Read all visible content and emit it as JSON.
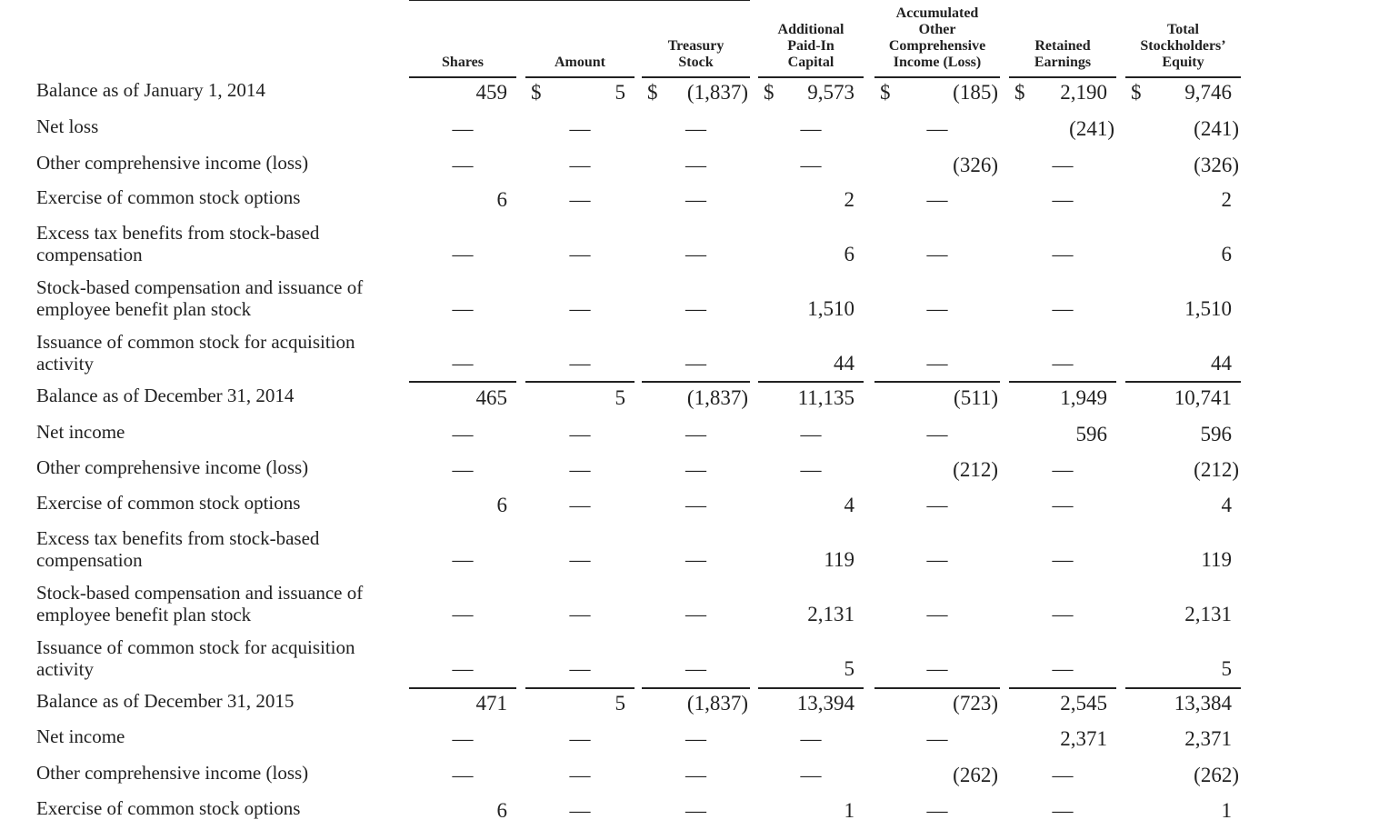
{
  "table": {
    "headers": [
      "Shares",
      "Amount",
      "Treasury\nStock",
      "Additional\nPaid-In\nCapital",
      "Accumulated\nOther\nComprehensive\nIncome (Loss)",
      "Retained\nEarnings",
      "Total\nStockholders’\nEquity"
    ],
    "rows": [
      {
        "label": "Balance as of January 1, 2014",
        "cells": [
          "459",
          {
            "currency": "$",
            "value": "5"
          },
          {
            "currency": "$",
            "value": "(1,837)"
          },
          {
            "currency": "$",
            "value": "9,573"
          },
          {
            "currency": "$",
            "value": "(185)"
          },
          {
            "currency": "$",
            "value": "2,190"
          },
          {
            "currency": "$",
            "value": "9,746"
          }
        ]
      },
      {
        "label": "Net loss",
        "cells": [
          "—",
          "—",
          "—",
          "—",
          "—",
          "(241)",
          "(241)"
        ]
      },
      {
        "label": "Other comprehensive income (loss)",
        "cells": [
          "—",
          "—",
          "—",
          "—",
          "(326)",
          "—",
          "(326)"
        ]
      },
      {
        "label": "Exercise of common stock options",
        "cells": [
          "6",
          "—",
          "—",
          "2",
          "—",
          "—",
          "2"
        ]
      },
      {
        "label": "Excess tax benefits from stock-based\ncompensation",
        "cells": [
          "—",
          "—",
          "—",
          "6",
          "—",
          "—",
          "6"
        ]
      },
      {
        "label": "Stock-based compensation and issuance of\nemployee benefit plan stock",
        "cells": [
          "—",
          "—",
          "—",
          "1,510",
          "—",
          "—",
          "1,510"
        ]
      },
      {
        "label": "Issuance of common stock for acquisition\nactivity",
        "cells": [
          "—",
          "—",
          "—",
          "44",
          "—",
          "—",
          "44"
        ]
      },
      {
        "label": "Balance as of December 31, 2014",
        "cells": [
          "465",
          "5",
          "(1,837)",
          "11,135",
          "(511)",
          "1,949",
          "10,741"
        ]
      },
      {
        "label": "Net income",
        "cells": [
          "—",
          "—",
          "—",
          "—",
          "—",
          "596",
          "596"
        ]
      },
      {
        "label": "Other comprehensive income (loss)",
        "cells": [
          "—",
          "—",
          "—",
          "—",
          "(212)",
          "—",
          "(212)"
        ]
      },
      {
        "label": "Exercise of common stock options",
        "cells": [
          "6",
          "—",
          "—",
          "4",
          "—",
          "—",
          "4"
        ]
      },
      {
        "label": "Excess tax benefits from stock-based\ncompensation",
        "cells": [
          "—",
          "—",
          "—",
          "119",
          "—",
          "—",
          "119"
        ]
      },
      {
        "label": "Stock-based compensation and issuance of\nemployee benefit plan stock",
        "cells": [
          "—",
          "—",
          "—",
          "2,131",
          "—",
          "—",
          "2,131"
        ]
      },
      {
        "label": "Issuance of common stock for acquisition\nactivity",
        "cells": [
          "—",
          "—",
          "—",
          "5",
          "—",
          "—",
          "5"
        ]
      },
      {
        "label": "Balance as of December 31, 2015",
        "cells": [
          "471",
          "5",
          "(1,837)",
          "13,394",
          "(723)",
          "2,545",
          "13,384"
        ]
      },
      {
        "label": "Net income",
        "cells": [
          "—",
          "—",
          "—",
          "—",
          "—",
          "2,371",
          "2,371"
        ]
      },
      {
        "label": "Other comprehensive income (loss)",
        "cells": [
          "—",
          "—",
          "—",
          "—",
          "(262)",
          "—",
          "(262)"
        ]
      },
      {
        "label": "Exercise of common stock options",
        "cells": [
          "6",
          "—",
          "—",
          "1",
          "—",
          "—",
          "1"
        ]
      }
    ]
  }
}
